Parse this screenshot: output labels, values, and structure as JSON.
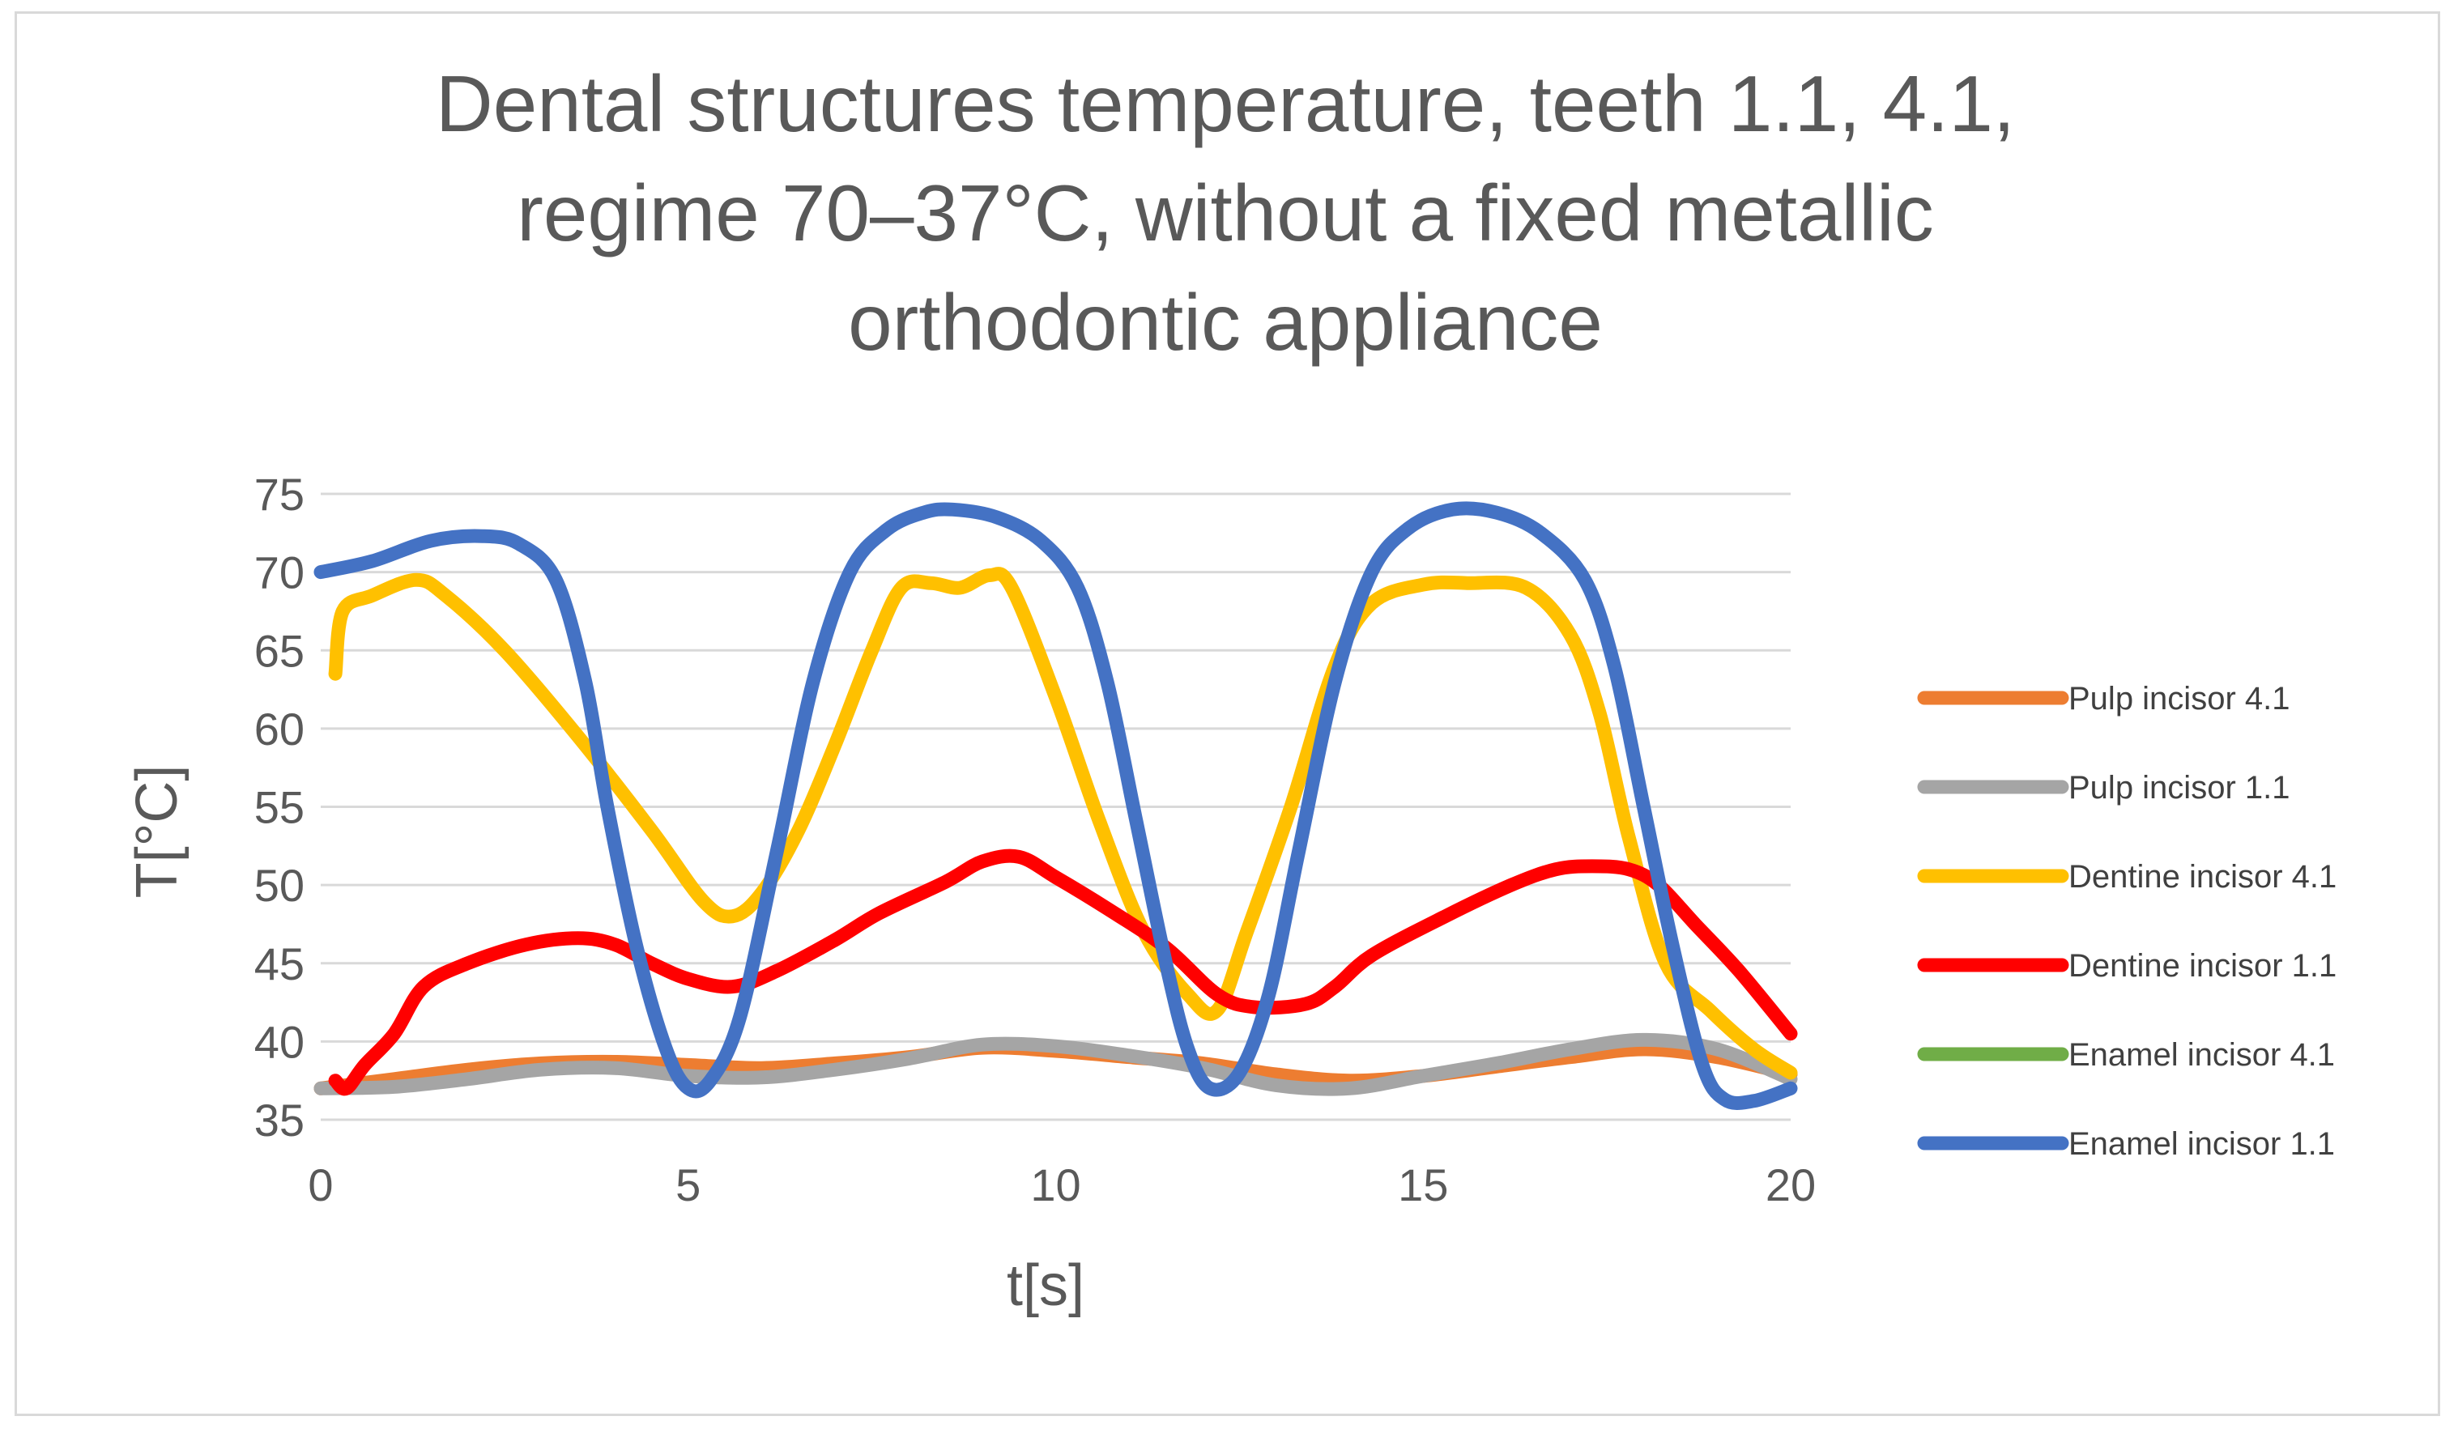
{
  "chart_data": {
    "type": "line",
    "title_lines": [
      "Dental structures temperature, teeth 1.1, 4.1,",
      "regime 70–37°C, without a fixed metallic",
      "orthodontic appliance"
    ],
    "xlabel": "t[s]",
    "ylabel": "T[°C]",
    "xlim": [
      0,
      20
    ],
    "ylim": [
      35,
      75
    ],
    "x_ticks": [
      "0",
      "5",
      "10",
      "15",
      "20"
    ],
    "y_ticks": [
      "35",
      "40",
      "45",
      "50",
      "55",
      "60",
      "65",
      "70",
      "75"
    ],
    "grid": "horizontal",
    "legend_position": "right",
    "series": [
      {
        "name": "Pulp  incisor 4.1",
        "color": "#ED7D31",
        "points": [
          [
            0,
            37
          ],
          [
            1,
            37.6
          ],
          [
            2,
            38.2
          ],
          [
            3,
            38.6
          ],
          [
            4,
            38.7
          ],
          [
            5,
            38.5
          ],
          [
            6,
            38.3
          ],
          [
            7,
            38.6
          ],
          [
            8,
            39
          ],
          [
            9,
            39.6
          ],
          [
            10,
            39.4
          ],
          [
            11,
            39
          ],
          [
            12,
            38.6
          ],
          [
            13,
            37.9
          ],
          [
            14,
            37.5
          ],
          [
            15,
            37.8
          ],
          [
            16,
            38.4
          ],
          [
            17,
            39
          ],
          [
            18,
            39.5
          ],
          [
            19,
            39
          ],
          [
            20,
            37.9
          ]
        ]
      },
      {
        "name": "Pulp  incisor 1.1",
        "color": "#A5A5A5",
        "points": [
          [
            0,
            37
          ],
          [
            1,
            37.1
          ],
          [
            2,
            37.6
          ],
          [
            3,
            38.2
          ],
          [
            4,
            38.3
          ],
          [
            5,
            37.8
          ],
          [
            6,
            37.7
          ],
          [
            7,
            38.2
          ],
          [
            8,
            38.9
          ],
          [
            9,
            39.8
          ],
          [
            10,
            39.7
          ],
          [
            11,
            39.1
          ],
          [
            12,
            38.3
          ],
          [
            13,
            37.2
          ],
          [
            14,
            37
          ],
          [
            15,
            37.8
          ],
          [
            16,
            38.6
          ],
          [
            17,
            39.5
          ],
          [
            18,
            40.1
          ],
          [
            19,
            39.5
          ],
          [
            20,
            37.6
          ]
        ]
      },
      {
        "name": "Dentine  incisor 4.1",
        "color": "#FFC000",
        "points": [
          [
            0.2,
            63.5
          ],
          [
            0.3,
            67.5
          ],
          [
            0.7,
            68.5
          ],
          [
            1.3,
            69.5
          ],
          [
            1.7,
            68.5
          ],
          [
            2.5,
            65
          ],
          [
            3.5,
            59.5
          ],
          [
            4.5,
            53.5
          ],
          [
            5.2,
            49
          ],
          [
            5.6,
            48
          ],
          [
            6,
            49.5
          ],
          [
            6.5,
            53.5
          ],
          [
            7,
            59
          ],
          [
            7.5,
            65
          ],
          [
            7.9,
            69
          ],
          [
            8.3,
            69.3
          ],
          [
            8.7,
            69
          ],
          [
            9.1,
            69.8
          ],
          [
            9.4,
            69
          ],
          [
            10,
            62
          ],
          [
            10.6,
            54
          ],
          [
            11.2,
            47
          ],
          [
            11.8,
            43
          ],
          [
            12.2,
            42
          ],
          [
            12.6,
            47
          ],
          [
            13.2,
            55
          ],
          [
            13.8,
            64
          ],
          [
            14.3,
            68
          ],
          [
            15,
            69.2
          ],
          [
            15.6,
            69.3
          ],
          [
            16.4,
            69
          ],
          [
            17,
            66
          ],
          [
            17.4,
            61
          ],
          [
            17.8,
            53
          ],
          [
            18.3,
            45
          ],
          [
            18.9,
            42
          ],
          [
            19.5,
            39.5
          ],
          [
            20,
            38
          ]
        ]
      },
      {
        "name": "Dentine  incisor 1.1",
        "color": "#FF0000",
        "points": [
          [
            0.2,
            37.5
          ],
          [
            0.35,
            37
          ],
          [
            0.6,
            38.5
          ],
          [
            1,
            40.5
          ],
          [
            1.4,
            43.5
          ],
          [
            2,
            45
          ],
          [
            2.8,
            46.2
          ],
          [
            3.5,
            46.6
          ],
          [
            4,
            46.2
          ],
          [
            4.5,
            45
          ],
          [
            5,
            44
          ],
          [
            5.6,
            43.5
          ],
          [
            6.2,
            44.5
          ],
          [
            7,
            46.5
          ],
          [
            7.6,
            48.2
          ],
          [
            8.5,
            50.2
          ],
          [
            9,
            51.5
          ],
          [
            9.5,
            51.8
          ],
          [
            10,
            50.5
          ],
          [
            10.7,
            48.5
          ],
          [
            11.5,
            46
          ],
          [
            12.2,
            43
          ],
          [
            12.7,
            42.2
          ],
          [
            13.4,
            42.4
          ],
          [
            13.8,
            43.5
          ],
          [
            14.3,
            45.5
          ],
          [
            15.3,
            48
          ],
          [
            16.2,
            50
          ],
          [
            16.8,
            51
          ],
          [
            17.3,
            51.2
          ],
          [
            17.8,
            51
          ],
          [
            18.2,
            50
          ],
          [
            18.7,
            47.5
          ],
          [
            19.3,
            44.5
          ],
          [
            20,
            40.5
          ]
        ]
      },
      {
        "name": "Enamel  incisor 4.1",
        "color": "#70AD47",
        "points": []
      },
      {
        "name": "Enamel  incisor 1.1",
        "color": "#4472C4",
        "points": [
          [
            0,
            70
          ],
          [
            0.7,
            70.7
          ],
          [
            1.5,
            72
          ],
          [
            2.2,
            72.3
          ],
          [
            2.7,
            71.8
          ],
          [
            3.2,
            69.5
          ],
          [
            3.6,
            63
          ],
          [
            3.9,
            55
          ],
          [
            4.3,
            46
          ],
          [
            4.7,
            39.5
          ],
          [
            5,
            37
          ],
          [
            5.3,
            37.5
          ],
          [
            5.7,
            41.5
          ],
          [
            6.2,
            52
          ],
          [
            6.7,
            63
          ],
          [
            7.2,
            70
          ],
          [
            7.7,
            72.7
          ],
          [
            8.2,
            73.8
          ],
          [
            8.6,
            74
          ],
          [
            9.2,
            73.5
          ],
          [
            9.8,
            72
          ],
          [
            10.3,
            69
          ],
          [
            10.7,
            63
          ],
          [
            11.1,
            54
          ],
          [
            11.5,
            45
          ],
          [
            11.8,
            39.5
          ],
          [
            12.1,
            37
          ],
          [
            12.5,
            38
          ],
          [
            12.9,
            43
          ],
          [
            13.3,
            52
          ],
          [
            13.8,
            63
          ],
          [
            14.3,
            70
          ],
          [
            14.8,
            72.8
          ],
          [
            15.4,
            74
          ],
          [
            16,
            73.8
          ],
          [
            16.6,
            72.5
          ],
          [
            17.2,
            69.5
          ],
          [
            17.6,
            64
          ],
          [
            18,
            55
          ],
          [
            18.4,
            46
          ],
          [
            18.8,
            38.5
          ],
          [
            19.1,
            36.3
          ],
          [
            19.5,
            36.2
          ],
          [
            20,
            37
          ]
        ]
      }
    ]
  }
}
